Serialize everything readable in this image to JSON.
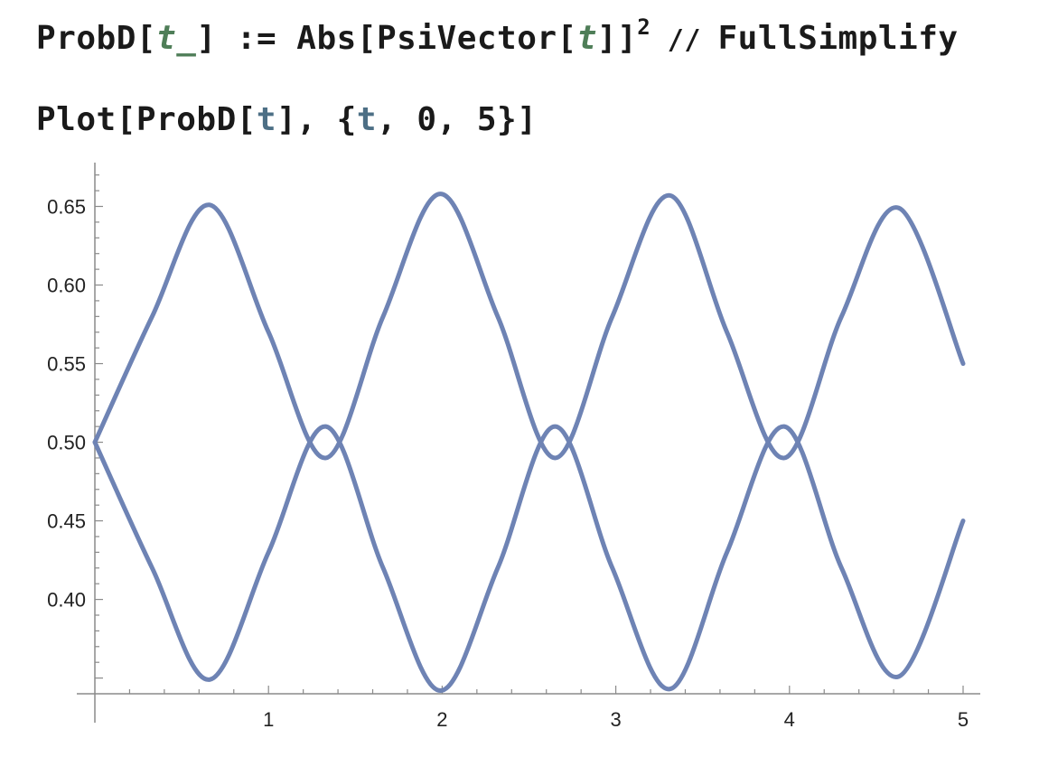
{
  "code": {
    "line1": {
      "head": "ProbD[",
      "pattern": "t_",
      "close": "]",
      "assign": " := ",
      "abs_open": "Abs[PsiVector[",
      "arg": "t",
      "abs_close": "]]",
      "exponent": "2",
      "postfix": " // ",
      "fn": "FullSimplify"
    },
    "line2": {
      "head": "Plot[ProbD[",
      "arg": "t",
      "mid": "], {",
      "iter_var": "t",
      "tail": ", 0, 5}]"
    }
  },
  "colors": {
    "curve": "#6e83b4",
    "axis": "#8a8a8a",
    "pattern_green": "#4f7e58",
    "var_blue": "#4d6f85"
  },
  "chart_data": {
    "type": "line",
    "xlim": [
      0,
      5
    ],
    "ylim": [
      0.34,
      0.675
    ],
    "x_ticks": [
      1,
      2,
      3,
      4,
      5
    ],
    "y_ticks": [
      0.4,
      0.45,
      0.5,
      0.55,
      0.6,
      0.65
    ],
    "x_tick_labels": [
      "1",
      "2",
      "3",
      "4",
      "5"
    ],
    "y_tick_labels": [
      "0.40",
      "0.45",
      "0.50",
      "0.55",
      "0.60",
      "0.65"
    ],
    "series": [
      {
        "x": [
          0,
          0.33,
          0.66,
          1.0,
          1.33,
          1.66,
          1.99,
          2.32,
          2.65,
          2.98,
          3.31,
          3.64,
          3.97,
          4.3,
          4.63,
          5.0
        ],
        "y": [
          0.5,
          0.58,
          0.651,
          0.57,
          0.49,
          0.58,
          0.658,
          0.58,
          0.49,
          0.58,
          0.657,
          0.57,
          0.49,
          0.58,
          0.649,
          0.55
        ]
      },
      {
        "x": [
          0,
          0.33,
          0.66,
          1.0,
          1.33,
          1.66,
          1.99,
          2.32,
          2.65,
          2.98,
          3.31,
          3.64,
          3.97,
          4.3,
          4.63,
          5.0
        ],
        "y": [
          0.5,
          0.42,
          0.349,
          0.43,
          0.51,
          0.42,
          0.342,
          0.42,
          0.51,
          0.42,
          0.343,
          0.43,
          0.51,
          0.42,
          0.351,
          0.45
        ]
      }
    ],
    "xlabel": "",
    "ylabel": "",
    "grid": false
  }
}
